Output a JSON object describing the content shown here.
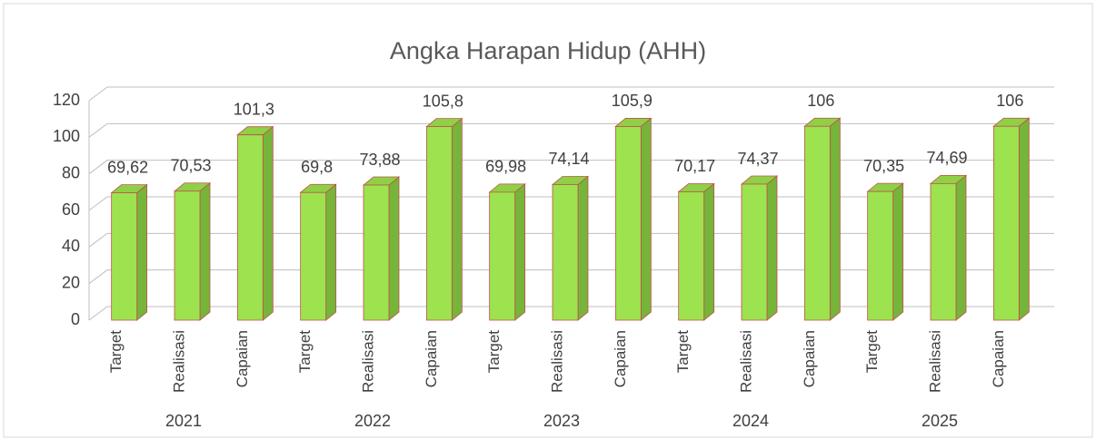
{
  "chart_data": {
    "type": "bar3d",
    "title": "Angka Harapan Hidup (AHH)",
    "categories": [
      "Target",
      "Realisasi",
      "Capaian",
      "Target",
      "Realisasi",
      "Capaian",
      "Target",
      "Realisasi",
      "Capaian",
      "Target",
      "Realisasi",
      "Capaian",
      "Target",
      "Realisasi",
      "Capaian"
    ],
    "groups": [
      "2021",
      "2022",
      "2023",
      "2024",
      "2025"
    ],
    "values": [
      69.62,
      70.53,
      101.3,
      69.8,
      73.88,
      105.8,
      69.98,
      74.14,
      105.9,
      70.17,
      74.37,
      106,
      70.35,
      74.69,
      106
    ],
    "value_labels": [
      "69,62",
      "70,53",
      "101,3",
      "69,8",
      "73,88",
      "105,8",
      "69,98",
      "74,14",
      "105,9",
      "70,17",
      "74,37",
      "106",
      "70,35",
      "74,69",
      "106"
    ],
    "color": "#9de24f",
    "ylim": [
      0,
      120
    ],
    "yticks": [
      0,
      20,
      40,
      60,
      80,
      100,
      120
    ],
    "grid": true
  }
}
